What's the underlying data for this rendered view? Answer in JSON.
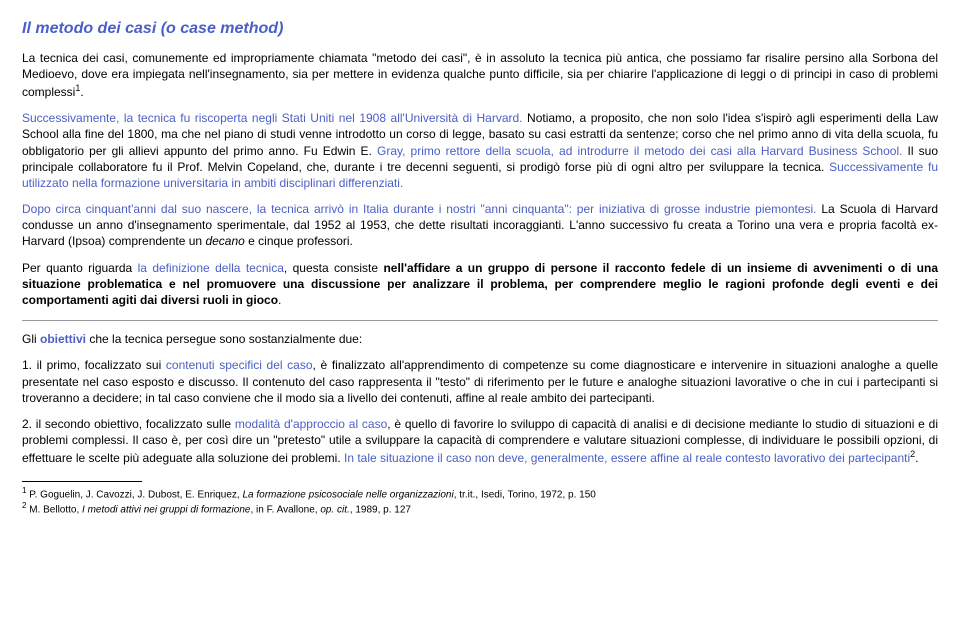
{
  "title": "Il metodo dei casi (o case method)",
  "p1a": "La tecnica dei casi, comunemente ed impropriamente chiamata \"metodo dei casi\", è in assoluto la tecnica più antica, che possiamo far risalire persino alla Sorbona del Medioevo, dove era impiegata nell'insegnamento, sia per mettere in evidenza qualche punto difficile, sia per chiarire l'applicazione di leggi o di principi in caso di problemi complessi",
  "p1sup": "1",
  "p1b": ".",
  "p2a": "Successivamente, la tecnica fu riscoperta negli Stati Uniti nel 1908 all'Università di Harvard.",
  "p2b": " Notiamo, a proposito, che non solo l'idea s'ispirò agli esperimenti della Law School alla fine del 1800, ma che nel piano di studi venne introdotto un corso di legge, basato su casi estratti da sentenze; corso che nel primo anno di vita della scuola, fu obbligatorio per gli allievi appunto del primo anno. Fu Edwin E. ",
  "p2c": "Gray, primo rettore della scuola, ad introdurre il metodo dei casi alla Harvard Business School.",
  "p2d": " Il suo principale collaboratore fu il Prof. Melvin Copeland, che, durante i tre decenni seguenti, si prodigò forse più di ogni altro per sviluppare la tecnica. ",
  "p2e": "Successivamente fu utilizzato nella formazione universitaria in ambiti disciplinari differenziati.",
  "p3a": "Dopo circa cinquant'anni dal suo nascere, la tecnica arrivò in Italia  durante i nostri \"anni cinquanta\": per iniziativa di grosse industrie piemontesi.",
  "p3b": " La Scuola di Harvard condusse un anno d'insegnamento sperimentale, dal 1952 al 1953, che dette risultati incoraggianti. L'anno successivo fu creata a Torino una vera e propria facoltà ex-Harvard (Ipsoa) comprendente un ",
  "p3c": "decano",
  "p3d": " e cinque professori.",
  "p4a": "Per quanto riguarda ",
  "p4b": "la definizione della tecnica",
  "p4c": ", questa consiste ",
  "p4d": "nell'affidare a un gruppo di persone il racconto fedele di un insieme di avvenimenti o di una situazione problematica e nel promuovere una discussione per analizzare il problema, per comprendere meglio le ragioni profonde degli eventi e dei comportamenti agiti dai diversi ruoli in gioco",
  "p4e": ".",
  "p5a": "Gli ",
  "p5b": "obiettivi",
  "p5c": " che la tecnica persegue sono sostanzialmente due:",
  "li1a": "1.  il primo, focalizzato sui ",
  "li1b": "contenuti specifici del caso",
  "li1c": ", è finalizzato all'apprendimento di competenze su come diagnosticare e intervenire in situazioni analoghe a quelle presentate nel caso esposto e discusso. Il contenuto del caso rappresenta il \"testo\" di riferimento per le future e analoghe situazioni lavorative o che in cui i partecipanti si troveranno a decidere; in tal caso conviene che il modo sia a livello dei contenuti, affine al reale ambito dei partecipanti.",
  "li2a": "2. il secondo obiettivo, focalizzato sulle ",
  "li2b": "modalità d'approccio al caso",
  "li2c": ", è quello di favorire lo sviluppo di capacità di analisi e di decisione mediante lo studio di situazioni e di problemi complessi. Il caso è, per così dire un \"pretesto\" utile a sviluppare la capacità di comprendere e valutare situazioni complesse, di individuare le possibili opzioni, di effettuare le scelte più adeguate alla soluzione dei problemi. ",
  "li2d": "In tale situazione il caso non deve, generalmente, essere affine al reale contesto lavorativo dei partecipanti",
  "li2sup": "2",
  "li2e": ".",
  "fn1num": "1",
  "fn1a": " P. Goguelin, J. Cavozzi, J. Dubost, E. Enriquez, ",
  "fn1b": "La formazione psicosociale nelle organizzazioni",
  "fn1c": ", tr.it., Isedi, Torino, 1972, p. 150",
  "fn2num": "2",
  "fn2a": " M. Bellotto, ",
  "fn2b": "I metodi attivi nei gruppi di formazione",
  "fn2c": ", in F. Avallone, ",
  "fn2d": "op. cit.",
  "fn2e": ", 1989, p. 127"
}
